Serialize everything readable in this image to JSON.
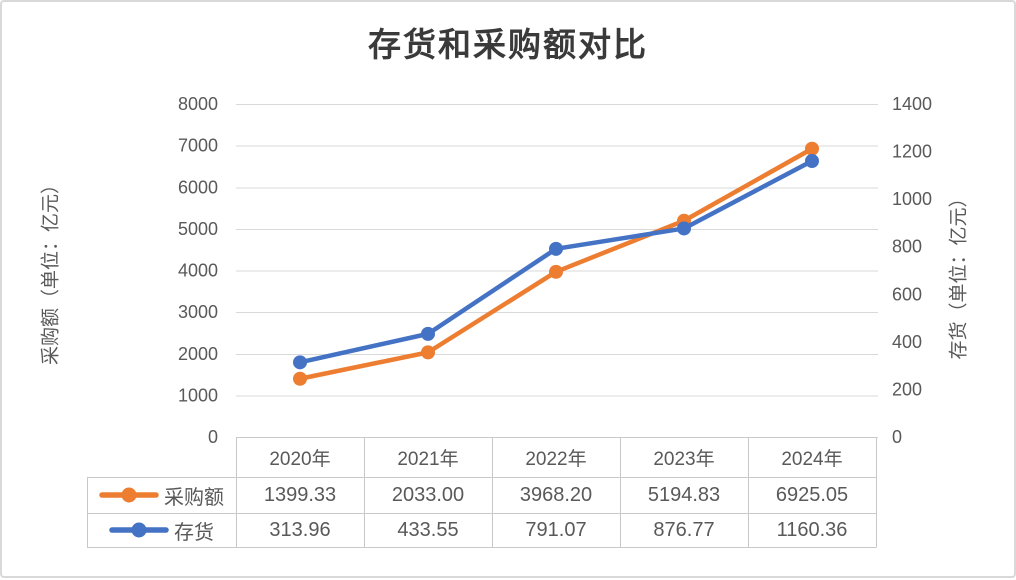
{
  "title": "存货和采购额对比",
  "chart_data": {
    "type": "line",
    "categories": [
      "2020年",
      "2021年",
      "2022年",
      "2023年",
      "2024年"
    ],
    "series": [
      {
        "name": "采购额",
        "axis": "left",
        "color": "#ED7D31",
        "values": [
          1399.33,
          2033.0,
          3968.2,
          5194.83,
          6925.05
        ]
      },
      {
        "name": "存货",
        "axis": "right",
        "color": "#4472C4",
        "values": [
          313.96,
          433.55,
          791.07,
          876.77,
          1160.36
        ]
      }
    ],
    "left_axis": {
      "title": "采购额（单位：亿元）",
      "min": 0,
      "max": 8000,
      "step": 1000,
      "ticks": [
        "0",
        "1000",
        "2000",
        "3000",
        "4000",
        "5000",
        "6000",
        "7000",
        "8000"
      ]
    },
    "right_axis": {
      "title": "存货（单位：亿元）",
      "min": 0,
      "max": 1400,
      "step": 200,
      "ticks": [
        "0",
        "200",
        "400",
        "600",
        "800",
        "1000",
        "1200",
        "1400"
      ]
    },
    "grid": true,
    "legend_position": "table-left",
    "data_table_shown": true
  },
  "table": {
    "rows": [
      {
        "label": "采购额",
        "cells": [
          "1399.33",
          "2033.00",
          "3968.20",
          "5194.83",
          "6925.05"
        ]
      },
      {
        "label": "存货",
        "cells": [
          "313.96",
          "433.55",
          "791.07",
          "876.77",
          "1160.36"
        ]
      }
    ]
  },
  "colors": {
    "purchase_series": "#ED7D31",
    "inventory_series": "#4472C4",
    "gridline": "#D9D9D9",
    "table_border": "#C9C9C9",
    "tick_text": "#595959",
    "title_text": "#3A3A3A"
  }
}
